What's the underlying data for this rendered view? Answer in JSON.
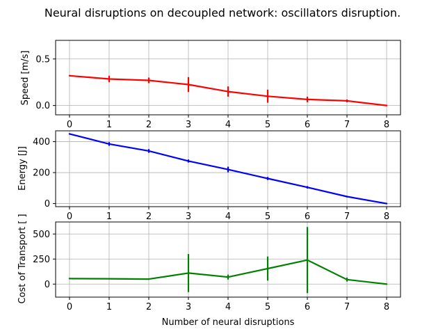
{
  "figure": {
    "title": "Neural disruptions on decoupled network: oscillators disruption."
  },
  "chart_data": [
    {
      "type": "line",
      "ylabel": "Speed [m/s]",
      "xlabel": "",
      "color": "#ff0000",
      "grid": true,
      "xlim": [
        -0.35,
        8.35
      ],
      "ylim": [
        -0.1,
        0.7
      ],
      "x": [
        0,
        1,
        2,
        3,
        4,
        5,
        6,
        7,
        8
      ],
      "xticks": [
        "0",
        "1",
        "2",
        "3",
        "4",
        "5",
        "6",
        "7",
        "8"
      ],
      "yticks": [
        0.0,
        0.5
      ],
      "ytick_labels": [
        "0.0",
        "0.5"
      ],
      "series": [
        {
          "values": [
            0.32,
            0.285,
            0.27,
            0.225,
            0.15,
            0.1,
            0.065,
            0.05,
            0.0
          ],
          "errors": [
            0.0,
            0.035,
            0.03,
            0.08,
            0.055,
            0.07,
            0.03,
            0.015,
            0.0
          ]
        }
      ]
    },
    {
      "type": "line",
      "ylabel": "Energy [J]",
      "xlabel": "",
      "color": "#0000ff",
      "grid": true,
      "xlim": [
        -0.35,
        8.35
      ],
      "ylim": [
        -20,
        470
      ],
      "x": [
        0,
        1,
        2,
        3,
        4,
        5,
        6,
        7,
        8
      ],
      "xticks": [
        "0",
        "1",
        "2",
        "3",
        "4",
        "5",
        "6",
        "7",
        "8"
      ],
      "yticks": [
        0,
        200,
        400
      ],
      "ytick_labels": [
        "0",
        "200",
        "400"
      ],
      "series": [
        {
          "values": [
            450,
            385,
            340,
            275,
            220,
            162,
            105,
            45,
            0
          ],
          "errors": [
            0,
            12,
            12,
            10,
            18,
            10,
            8,
            5,
            0
          ]
        }
      ]
    },
    {
      "type": "line",
      "ylabel": "Cost of Transport [ ]",
      "xlabel": "Number of neural disruptions",
      "color": "#008000",
      "grid": true,
      "xlim": [
        -0.35,
        8.35
      ],
      "ylim": [
        -130,
        620
      ],
      "x": [
        0,
        1,
        2,
        3,
        4,
        5,
        6,
        7,
        8
      ],
      "xticks": [
        "0",
        "1",
        "2",
        "3",
        "4",
        "5",
        "6",
        "7",
        "8"
      ],
      "yticks": [
        0,
        250,
        500
      ],
      "ytick_labels": [
        "0",
        "250",
        "500"
      ],
      "series": [
        {
          "values": [
            55,
            53,
            50,
            110,
            70,
            155,
            240,
            45,
            0
          ],
          "errors": [
            0,
            0,
            0,
            190,
            25,
            120,
            330,
            20,
            0
          ]
        }
      ]
    }
  ]
}
